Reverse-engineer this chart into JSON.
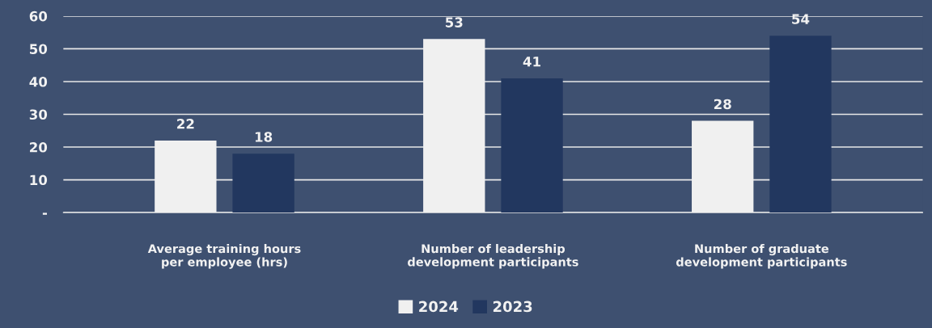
{
  "chart_data": {
    "type": "bar",
    "categories": [
      "Average training hours\nper employee (hrs)",
      "Number of leadership\ndevelopment participants",
      "Number of graduate\ndevelopment participants"
    ],
    "series": [
      {
        "name": "2024",
        "color": "#f0f0f0",
        "values": [
          22,
          53,
          28
        ]
      },
      {
        "name": "2023",
        "color": "#22375f",
        "values": [
          18,
          41,
          54
        ]
      }
    ],
    "ylim": [
      0,
      60
    ],
    "yticks": [
      {
        "value": 0,
        "label": "-"
      },
      10,
      20,
      30,
      40,
      50,
      60
    ],
    "data_labels": true,
    "grid": "y",
    "legend": "bottom"
  }
}
